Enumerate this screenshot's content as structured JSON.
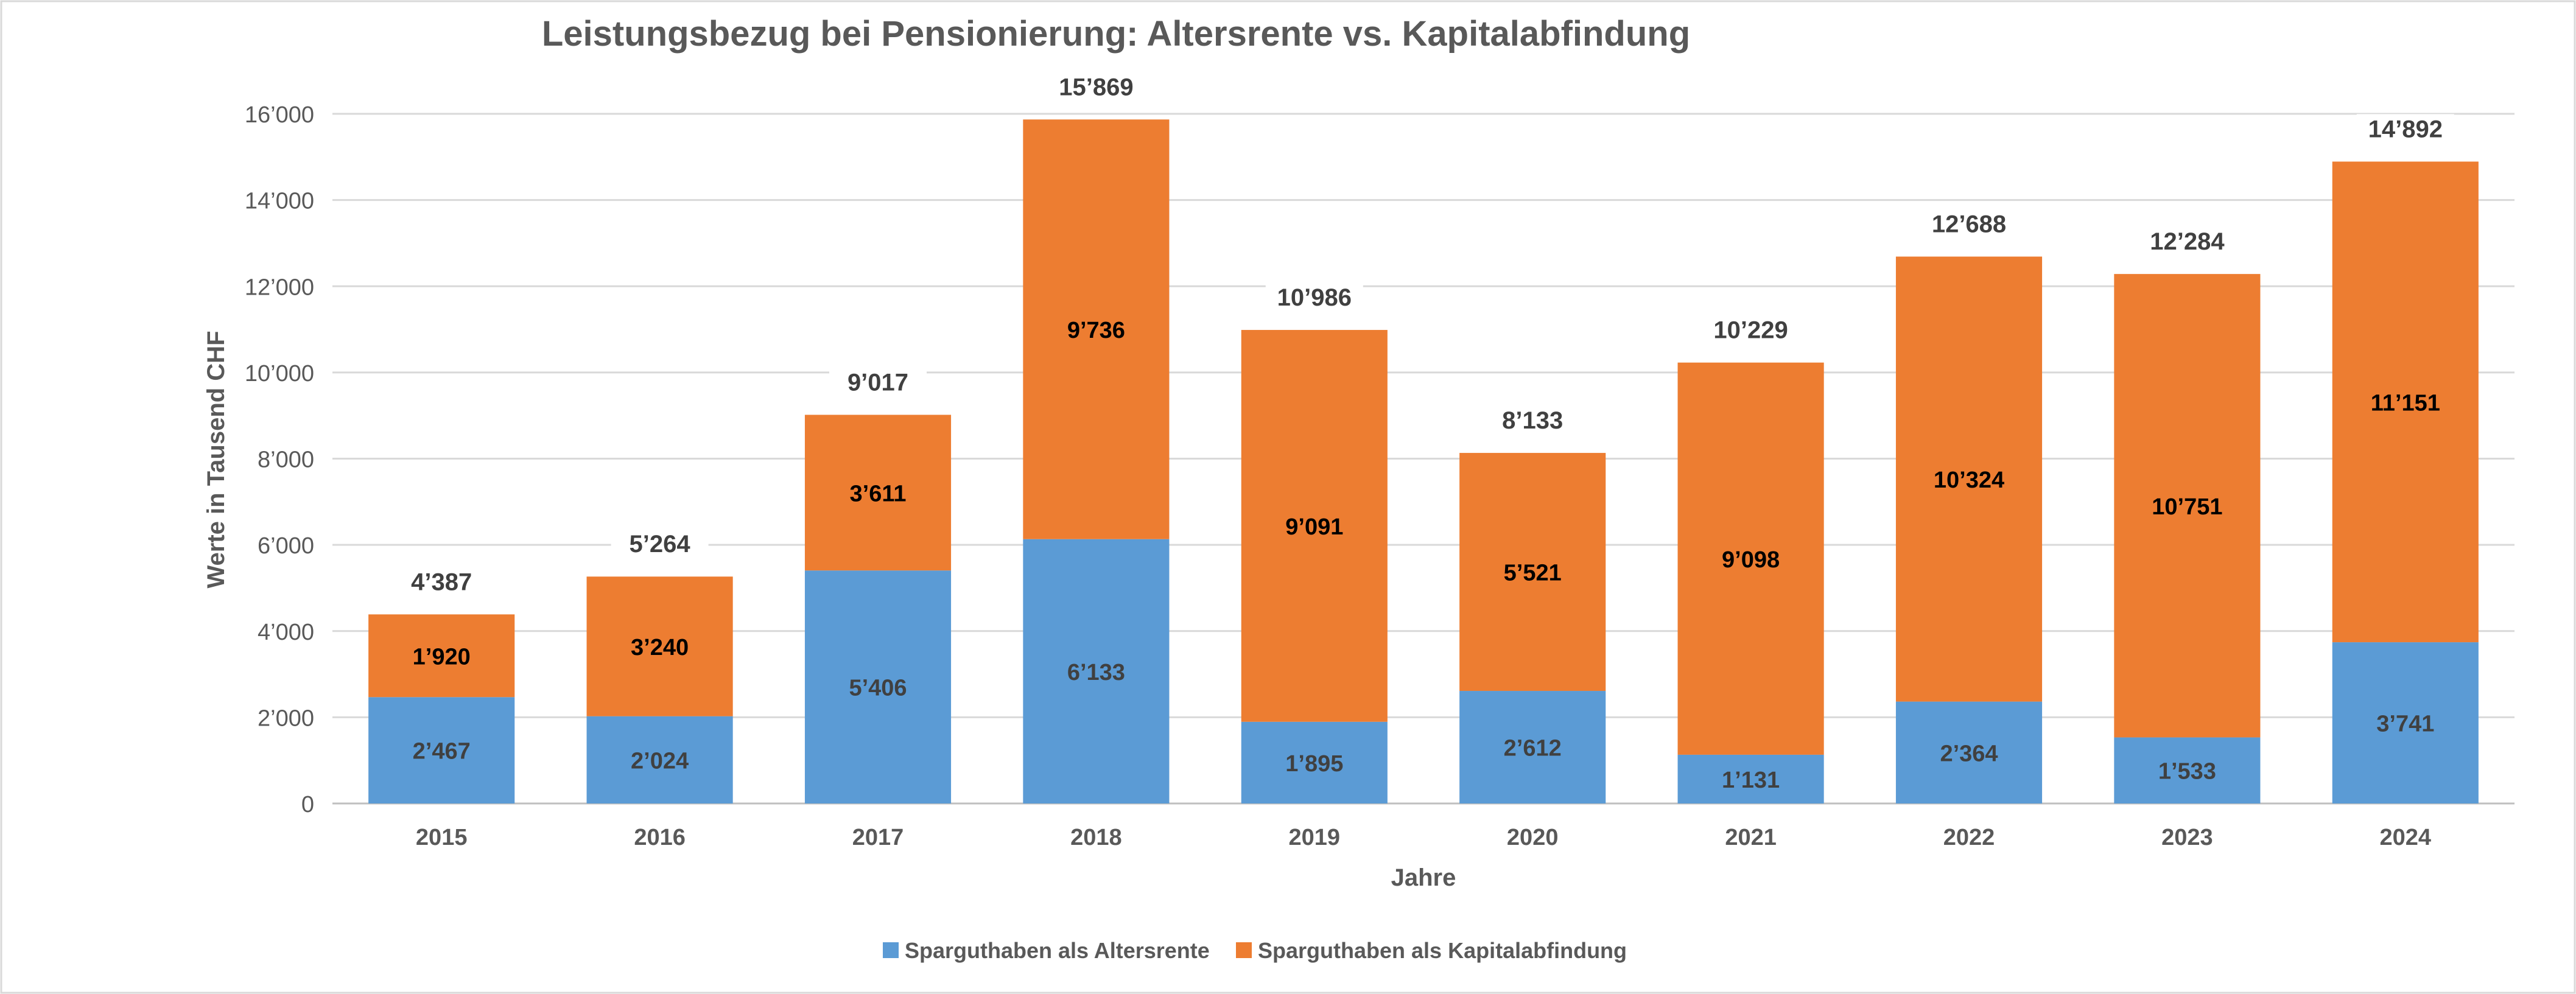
{
  "chart_data": {
    "type": "bar",
    "stacked": true,
    "title": "Leistungsbezug bei Pensionierung: Altersrente vs. Kapitalabfindung",
    "xlabel": "Jahre",
    "ylabel": "Werte in Tausend CHF",
    "ylim": [
      0,
      16000
    ],
    "yticks": [
      0,
      2000,
      4000,
      6000,
      8000,
      10000,
      12000,
      14000,
      16000
    ],
    "ytick_labels": [
      "0",
      "2’000",
      "4’000",
      "6’000",
      "8’000",
      "10’000",
      "12’000",
      "14’000",
      "16’000"
    ],
    "grid": true,
    "legend_position": "bottom",
    "categories": [
      "2015",
      "2016",
      "2017",
      "2018",
      "2019",
      "2020",
      "2021",
      "2022",
      "2023",
      "2024"
    ],
    "series": [
      {
        "name": "Sparguthaben als Altersrente",
        "color": "#5B9BD5",
        "values": [
          2467,
          2024,
          5406,
          6133,
          1895,
          2612,
          1131,
          2364,
          1533,
          3741
        ],
        "labels": [
          "2’467",
          "2’024",
          "5’406",
          "6’133",
          "1’895",
          "2’612",
          "1’131",
          "2’364",
          "1’533",
          "3’741"
        ]
      },
      {
        "name": "Sparguthaben als Kapitalabfindung",
        "color": "#ED7D31",
        "values": [
          1920,
          3240,
          3611,
          9736,
          9091,
          5521,
          9098,
          10324,
          10751,
          11151
        ],
        "labels": [
          "1’920",
          "3’240",
          "3’611",
          "9’736",
          "9’091",
          "5’521",
          "9’098",
          "10’324",
          "10’751",
          "11’151"
        ]
      }
    ],
    "totals": [
      4387,
      5264,
      9017,
      15869,
      10986,
      8133,
      10229,
      12688,
      12284,
      14892
    ],
    "total_labels": [
      "4’387",
      "5’264",
      "9’017",
      "15’869",
      "10’986",
      "8’133",
      "10’229",
      "12’688",
      "12’284",
      "14’892"
    ]
  }
}
